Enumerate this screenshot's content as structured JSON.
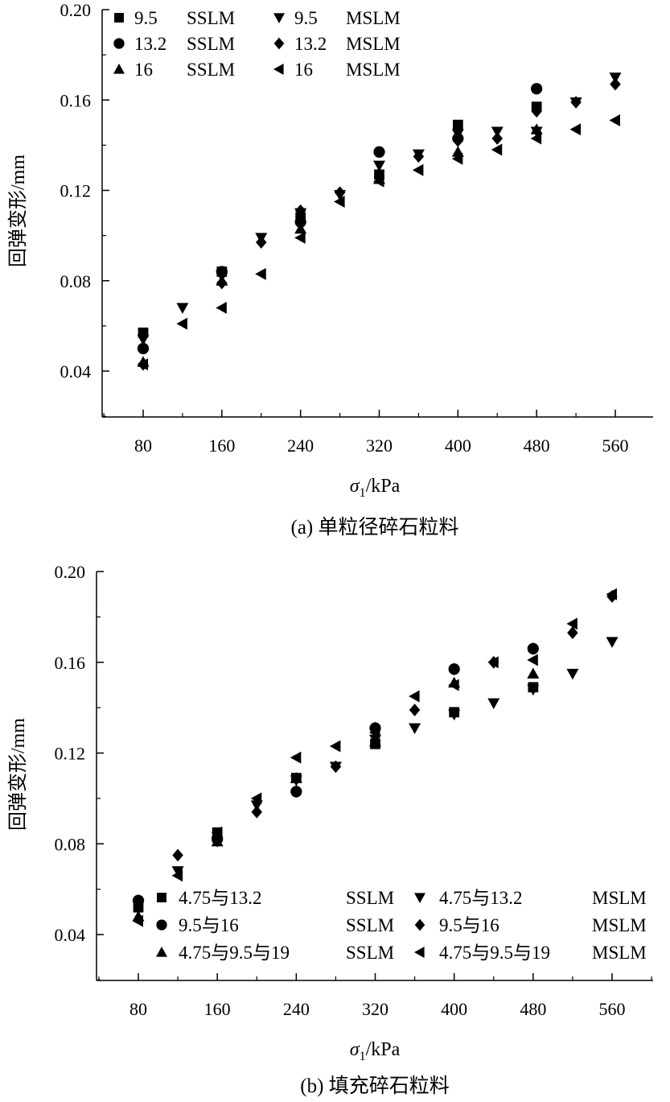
{
  "chart_data": [
    {
      "type": "scatter",
      "caption": "(a) 单粒径碎石粒料",
      "ylabel": "回弹变形/mm",
      "xlabel_symbol": "σ",
      "xlabel_sub": "1",
      "xlabel_unit": "/kPa",
      "xlim": [
        40,
        600
      ],
      "ylim": [
        0.025,
        0.2
      ],
      "xticks": [
        80,
        160,
        240,
        320,
        400,
        480,
        560
      ],
      "yticks": [
        0.04,
        0.08,
        0.12,
        0.16,
        0.2
      ],
      "xtick_labels": [
        "80",
        "160",
        "240",
        "320",
        "400",
        "480",
        "560"
      ],
      "ytick_labels": [
        "0.04",
        "0.08",
        "0.12",
        "0.16",
        "0.20"
      ],
      "legend": [
        {
          "marker": "square",
          "size": "9.5",
          "mode": "SSLM"
        },
        {
          "marker": "circle",
          "size": "13.2",
          "mode": "SSLM"
        },
        {
          "marker": "triangle-up",
          "size": "16",
          "mode": "SSLM"
        },
        {
          "marker": "triangle-down",
          "size": "9.5",
          "mode": "MSLM"
        },
        {
          "marker": "diamond",
          "size": "13.2",
          "mode": "MSLM"
        },
        {
          "marker": "triangle-left",
          "size": "16",
          "mode": "MSLM"
        }
      ],
      "series": [
        {
          "marker": "square",
          "x": [
            80,
            160,
            240,
            320,
            400,
            480
          ],
          "y": [
            0.057,
            0.084,
            0.108,
            0.127,
            0.149,
            0.157
          ]
        },
        {
          "marker": "circle",
          "x": [
            80,
            160,
            240,
            320,
            400,
            480
          ],
          "y": [
            0.05,
            0.084,
            0.106,
            0.137,
            0.143,
            0.165
          ]
        },
        {
          "marker": "triangle-up",
          "x": [
            80,
            160,
            240,
            320,
            400,
            480
          ],
          "y": [
            0.044,
            0.08,
            0.103,
            0.125,
            0.137,
            0.147
          ]
        },
        {
          "marker": "triangle-down",
          "x": [
            80,
            120,
            160,
            200,
            240,
            280,
            320,
            360,
            400,
            440,
            480,
            520,
            560
          ],
          "y": [
            0.054,
            0.068,
            0.082,
            0.099,
            0.11,
            0.118,
            0.131,
            0.136,
            0.145,
            0.146,
            0.146,
            0.159,
            0.17
          ]
        },
        {
          "marker": "diamond",
          "x": [
            80,
            160,
            200,
            240,
            280,
            320,
            360,
            400,
            440,
            480,
            520,
            560
          ],
          "y": [
            0.043,
            0.079,
            0.097,
            0.111,
            0.119,
            0.126,
            0.135,
            0.142,
            0.143,
            0.155,
            0.159,
            0.167
          ]
        },
        {
          "marker": "triangle-left",
          "x": [
            80,
            120,
            160,
            200,
            240,
            280,
            320,
            360,
            400,
            440,
            480,
            520,
            560
          ],
          "y": [
            0.043,
            0.061,
            0.068,
            0.083,
            0.099,
            0.115,
            0.124,
            0.129,
            0.134,
            0.138,
            0.143,
            0.147,
            0.151
          ]
        }
      ]
    },
    {
      "type": "scatter",
      "caption": "(b) 填充碎石粒料",
      "ylabel": "回弹变形/mm",
      "xlabel_symbol": "σ",
      "xlabel_sub": "1",
      "xlabel_unit": "/kPa",
      "xlim": [
        40,
        600
      ],
      "ylim": [
        0.025,
        0.2
      ],
      "xticks": [
        80,
        160,
        240,
        320,
        400,
        480,
        560
      ],
      "yticks": [
        0.04,
        0.08,
        0.12,
        0.16,
        0.2
      ],
      "xtick_labels": [
        "80",
        "160",
        "240",
        "320",
        "400",
        "480",
        "560"
      ],
      "ytick_labels": [
        "0.04",
        "0.08",
        "0.12",
        "0.16",
        "0.20"
      ],
      "legend": [
        {
          "marker": "square",
          "size": "4.75与13.2",
          "mode": "SSLM"
        },
        {
          "marker": "circle",
          "size": "9.5与16",
          "mode": "SSLM"
        },
        {
          "marker": "triangle-up",
          "size": "4.75与9.5与19",
          "mode": "SSLM"
        },
        {
          "marker": "triangle-down",
          "size": "4.75与13.2",
          "mode": "MSLM"
        },
        {
          "marker": "diamond",
          "size": "9.5与16",
          "mode": "MSLM"
        },
        {
          "marker": "triangle-left",
          "size": "4.75与9.5与19",
          "mode": "MSLM"
        }
      ],
      "series": [
        {
          "marker": "square",
          "x": [
            80,
            160,
            240,
            320,
            400,
            480
          ],
          "y": [
            0.052,
            0.085,
            0.109,
            0.124,
            0.138,
            0.149
          ]
        },
        {
          "marker": "circle",
          "x": [
            80,
            160,
            240,
            320,
            400,
            480
          ],
          "y": [
            0.055,
            0.082,
            0.103,
            0.131,
            0.157,
            0.166
          ]
        },
        {
          "marker": "triangle-up",
          "x": [
            80,
            160,
            240,
            320,
            400,
            480
          ],
          "y": [
            0.048,
            0.081,
            0.109,
            0.125,
            0.151,
            0.155
          ]
        },
        {
          "marker": "triangle-down",
          "x": [
            80,
            120,
            160,
            200,
            240,
            280,
            320,
            360,
            400,
            440,
            480,
            520,
            560
          ],
          "y": [
            0.053,
            0.068,
            0.081,
            0.097,
            0.108,
            0.114,
            0.126,
            0.131,
            0.137,
            0.142,
            0.148,
            0.155,
            0.169
          ]
        },
        {
          "marker": "diamond",
          "x": [
            80,
            120,
            160,
            200,
            240,
            280,
            320,
            360,
            400,
            440,
            480,
            520,
            560
          ],
          "y": [
            0.055,
            0.075,
            0.082,
            0.094,
            0.103,
            0.114,
            0.131,
            0.139,
            0.157,
            0.16,
            0.166,
            0.173,
            0.189
          ]
        },
        {
          "marker": "triangle-left",
          "x": [
            80,
            120,
            160,
            200,
            240,
            280,
            320,
            360,
            400,
            440,
            480,
            520,
            560
          ],
          "y": [
            0.046,
            0.066,
            0.085,
            0.1,
            0.118,
            0.123,
            0.129,
            0.145,
            0.15,
            0.16,
            0.161,
            0.177,
            0.19
          ]
        }
      ]
    }
  ]
}
